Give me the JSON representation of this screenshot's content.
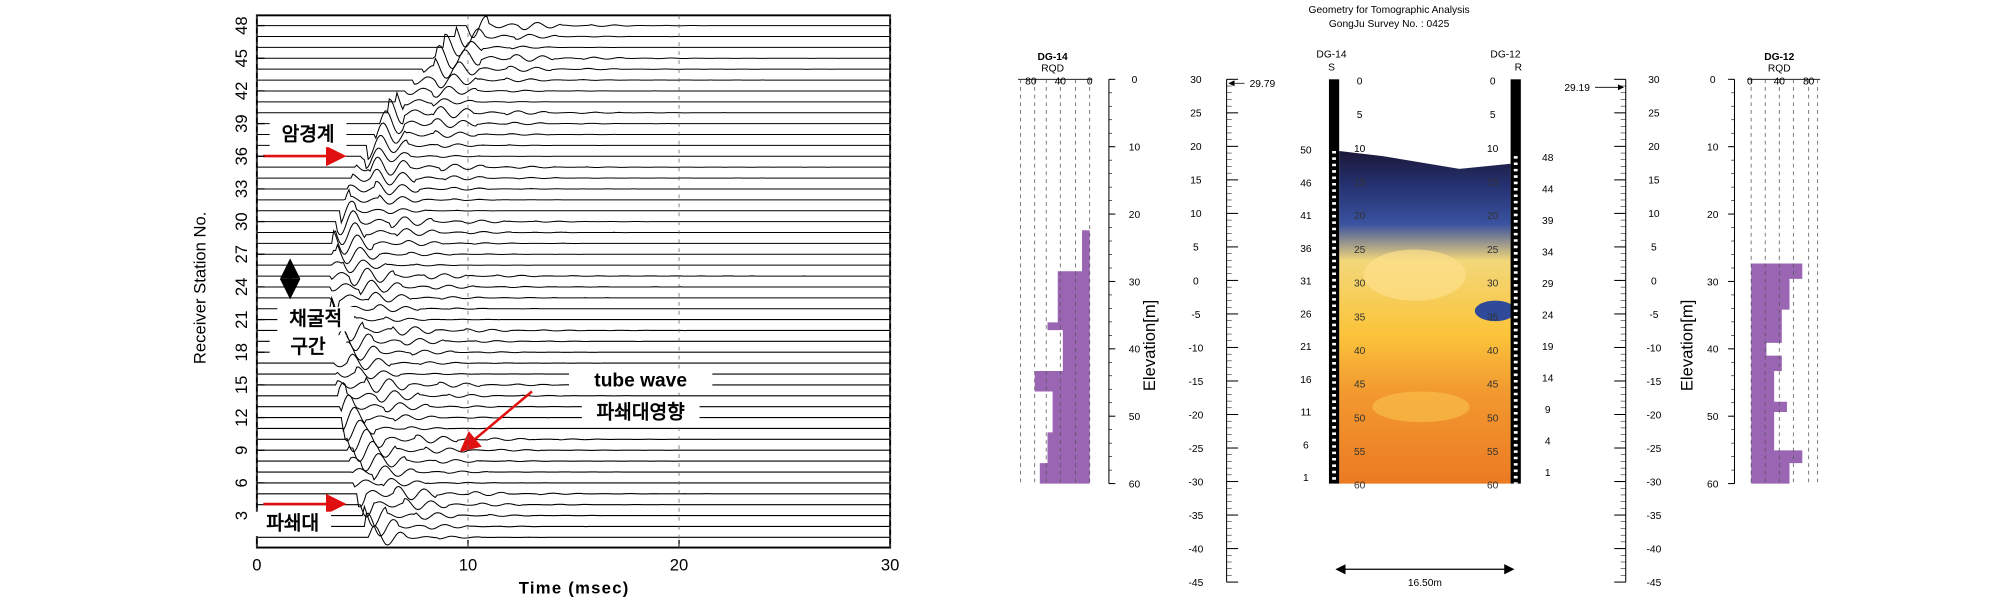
{
  "seismogram": {
    "xlabel": "Time (msec)",
    "ylabel": "Receiver Station No.",
    "xticks": [
      0,
      10,
      20,
      30
    ],
    "yticks": [
      3,
      6,
      9,
      12,
      15,
      18,
      21,
      24,
      27,
      30,
      33,
      36,
      39,
      42,
      45,
      48
    ],
    "annotations": [
      "암경계",
      "채굴적",
      "구간",
      "tube wave",
      "파쇄대영향",
      "파쇄대"
    ]
  },
  "tomography": {
    "title": "Geometry for Tomographic Analysis",
    "subtitle": "GongJu Survey No. : 0425",
    "left_log": {
      "name": "DG-14",
      "label": "RQD",
      "rqd_ticks": [
        80,
        40,
        0
      ],
      "depth_ticks": [
        0,
        10,
        20,
        30,
        40,
        50,
        60
      ]
    },
    "left_elevation": {
      "label": "Elevation[m]",
      "top": 29.79,
      "ticks": [
        30,
        25,
        20,
        15,
        10,
        5,
        0,
        -5,
        -10,
        -15,
        -20,
        -25,
        -30,
        -35,
        -40,
        -45
      ]
    },
    "tomogram": {
      "left_name": "DG-14",
      "left_mark": "S",
      "right_name": "DG-12",
      "right_mark": "R",
      "depths_left": [
        0,
        5,
        10,
        15,
        20,
        25,
        30,
        35,
        40,
        45,
        50,
        55,
        60
      ],
      "depths_right": [
        0,
        5,
        10,
        15,
        20,
        25,
        30,
        35,
        40,
        45,
        50,
        55,
        60
      ],
      "sources": [
        50,
        46,
        41,
        36,
        31,
        26,
        21,
        16,
        11,
        6,
        1
      ],
      "receivers": [
        48,
        44,
        39,
        34,
        29,
        24,
        19,
        14,
        9,
        4,
        1
      ],
      "spacing": "16.50m"
    },
    "right_elevation": {
      "label": "Elevation[m]",
      "top": 29.19,
      "ticks": [
        30,
        25,
        20,
        15,
        10,
        5,
        0,
        -5,
        -10,
        -15,
        -20,
        -25,
        -30,
        -35,
        -40,
        -45
      ]
    },
    "right_log": {
      "name": "DG-12",
      "label": "RQD",
      "rqd_ticks": [
        0,
        40,
        80
      ],
      "depth_ticks": [
        0,
        10,
        20,
        30,
        40,
        50,
        60
      ]
    }
  }
}
